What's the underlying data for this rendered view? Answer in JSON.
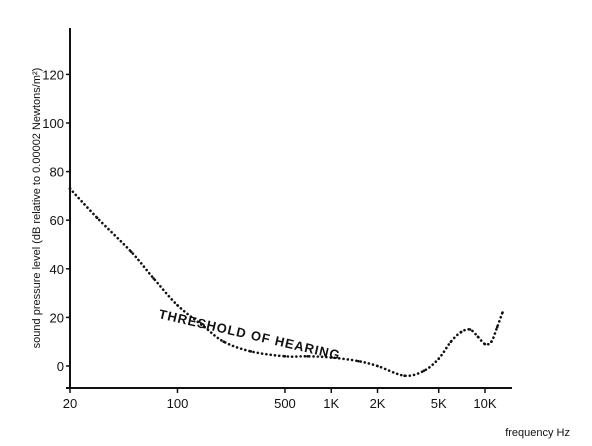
{
  "chart_data": {
    "type": "line",
    "title": "",
    "xlabel": "frequency Hz",
    "ylabel": "sound pressure level (dB relative to 0.00002 Newtons/m²)",
    "x_scale": "log",
    "x_ticks": [
      {
        "value": 20,
        "label": "20"
      },
      {
        "value": 100,
        "label": "100"
      },
      {
        "value": 500,
        "label": "500"
      },
      {
        "value": 1000,
        "label": "1K"
      },
      {
        "value": 2000,
        "label": "2K"
      },
      {
        "value": 5000,
        "label": "5K"
      },
      {
        "value": 10000,
        "label": "10K"
      }
    ],
    "y_ticks": [
      {
        "value": 0,
        "label": "0"
      },
      {
        "value": 20,
        "label": "20"
      },
      {
        "value": 40,
        "label": "40"
      },
      {
        "value": 60,
        "label": "60"
      },
      {
        "value": 80,
        "label": "80"
      },
      {
        "value": 100,
        "label": "100"
      },
      {
        "value": 120,
        "label": "120"
      }
    ],
    "xlim": [
      20,
      16000
    ],
    "ylim": [
      -10,
      140
    ],
    "grid": false,
    "series": [
      {
        "points": [
          {
            "x": 20,
            "y": 73
          },
          {
            "x": 30,
            "y": 61
          },
          {
            "x": 50,
            "y": 47
          },
          {
            "x": 70,
            "y": 36
          },
          {
            "x": 100,
            "y": 25
          },
          {
            "x": 150,
            "y": 16
          },
          {
            "x": 200,
            "y": 10
          },
          {
            "x": 300,
            "y": 6
          },
          {
            "x": 500,
            "y": 4
          },
          {
            "x": 700,
            "y": 4
          },
          {
            "x": 1000,
            "y": 3.5
          },
          {
            "x": 1500,
            "y": 2
          },
          {
            "x": 2000,
            "y": 0
          },
          {
            "x": 3000,
            "y": -4
          },
          {
            "x": 4000,
            "y": -2
          },
          {
            "x": 5000,
            "y": 3
          },
          {
            "x": 6000,
            "y": 10
          },
          {
            "x": 7000,
            "y": 14
          },
          {
            "x": 8000,
            "y": 15
          },
          {
            "x": 9000,
            "y": 12
          },
          {
            "x": 10000,
            "y": 9
          },
          {
            "x": 11000,
            "y": 10
          },
          {
            "x": 12000,
            "y": 16
          },
          {
            "x": 13000,
            "y": 22
          }
        ]
      }
    ],
    "annotations": [
      {
        "text": "THRESHOLD OF HEARING"
      }
    ],
    "colors": {
      "ink": "#111111",
      "background": "#ffffff"
    }
  }
}
